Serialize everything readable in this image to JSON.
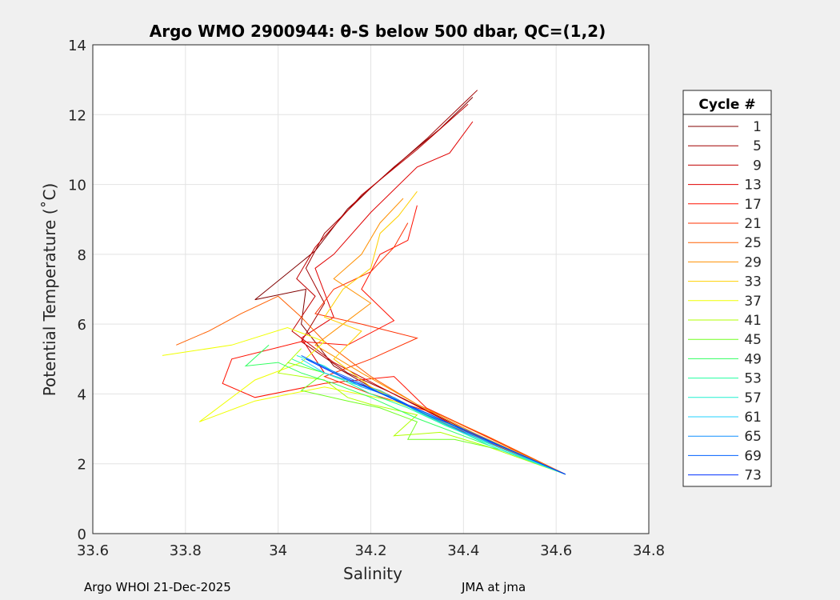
{
  "chart_data": {
    "type": "line",
    "title": "Argo WMO 2900944: θ-S below 500 dbar,  QC=(1,2)",
    "xlabel": "Salinity",
    "ylabel": "Potential Temperature (˚C)",
    "xlim": [
      33.6,
      34.8
    ],
    "ylim": [
      0,
      14
    ],
    "xticks": [
      33.6,
      33.8,
      34,
      34.2,
      34.4,
      34.6,
      34.8
    ],
    "xtick_labels": [
      "33.6",
      "33.8",
      "34",
      "34.2",
      "34.4",
      "34.6",
      "34.8"
    ],
    "yticks": [
      0,
      2,
      4,
      6,
      8,
      10,
      12,
      14
    ],
    "ytick_labels": [
      "0",
      "2",
      "4",
      "6",
      "8",
      "10",
      "12",
      "14"
    ],
    "grid": true,
    "legend": {
      "title": "Cycle #",
      "placement": "right"
    },
    "series": [
      {
        "name": "1",
        "color": "#800000",
        "S": [
          34.42,
          34.35,
          34.25,
          34.15,
          34.08,
          33.95,
          34.06,
          34.05,
          34.12,
          34.2,
          34.35,
          34.62
        ],
        "T": [
          12.5,
          11.6,
          10.5,
          9.3,
          8.1,
          6.7,
          7.0,
          6.0,
          4.8,
          4.2,
          3.2,
          1.7
        ]
      },
      {
        "name": "5",
        "color": "#a00000",
        "S": [
          34.43,
          34.32,
          34.2,
          34.1,
          34.06,
          34.1,
          34.05,
          34.15,
          34.25,
          34.4,
          34.62
        ],
        "T": [
          12.7,
          11.3,
          9.9,
          8.6,
          7.6,
          6.6,
          5.5,
          4.6,
          4.0,
          3.0,
          1.7
        ]
      },
      {
        "name": "9",
        "color": "#c00000",
        "S": [
          34.41,
          34.3,
          34.18,
          34.08,
          34.04,
          34.08,
          34.03,
          34.12,
          34.22,
          34.38,
          34.62
        ],
        "T": [
          12.3,
          11.0,
          9.7,
          8.2,
          7.3,
          6.8,
          5.8,
          4.9,
          4.2,
          3.1,
          1.7
        ]
      },
      {
        "name": "13",
        "color": "#e00000",
        "S": [
          34.42,
          34.37,
          34.3,
          34.2,
          34.12,
          34.08,
          34.12,
          34.05,
          34.1,
          34.22,
          34.35,
          34.62
        ],
        "T": [
          11.8,
          10.9,
          10.5,
          9.2,
          8.0,
          7.6,
          6.2,
          5.6,
          4.6,
          4.1,
          3.2,
          1.7
        ]
      },
      {
        "name": "17",
        "color": "#ff1000",
        "S": [
          34.3,
          34.28,
          34.22,
          34.18,
          34.25,
          34.15,
          34.05,
          33.9,
          33.88,
          33.95,
          34.1,
          34.25,
          34.32,
          34.4,
          34.62
        ],
        "T": [
          9.4,
          8.4,
          8.0,
          7.0,
          6.1,
          5.4,
          5.5,
          5.0,
          4.3,
          3.9,
          4.3,
          4.5,
          3.6,
          3.1,
          1.7
        ]
      },
      {
        "name": "21",
        "color": "#ff3000",
        "S": [
          34.28,
          34.25,
          34.2,
          34.12,
          34.08,
          34.18,
          34.3,
          34.2,
          34.1,
          34.2,
          34.35,
          34.62
        ],
        "T": [
          8.9,
          8.2,
          7.5,
          7.0,
          6.3,
          6.0,
          5.6,
          5.0,
          4.5,
          4.0,
          3.4,
          1.7
        ]
      },
      {
        "name": "25",
        "color": "#ff6000",
        "S": [
          33.78,
          33.85,
          33.92,
          34.0,
          34.05,
          34.1,
          34.15,
          34.2,
          34.3,
          34.45,
          34.62
        ],
        "T": [
          5.4,
          5.8,
          6.3,
          6.8,
          6.2,
          5.5,
          5.0,
          4.5,
          3.7,
          2.8,
          1.7
        ]
      },
      {
        "name": "29",
        "color": "#ff9000",
        "S": [
          34.27,
          34.22,
          34.18,
          34.12,
          34.2,
          34.15,
          34.08,
          34.18,
          34.3,
          34.42,
          34.62
        ],
        "T": [
          9.6,
          8.9,
          8.0,
          7.3,
          6.6,
          6.1,
          5.4,
          4.6,
          3.7,
          2.9,
          1.7
        ]
      },
      {
        "name": "33",
        "color": "#ffd000",
        "S": [
          34.3,
          34.26,
          34.22,
          34.2,
          34.14,
          34.1,
          34.18,
          34.12,
          34.2,
          34.32,
          34.62
        ],
        "T": [
          9.8,
          9.1,
          8.6,
          7.6,
          7.0,
          6.2,
          5.8,
          5.0,
          4.2,
          3.4,
          1.7
        ]
      },
      {
        "name": "37",
        "color": "#f0ff00",
        "S": [
          33.75,
          33.9,
          34.02,
          34.1,
          34.05,
          33.95,
          33.83,
          33.95,
          34.1,
          34.25,
          34.4,
          34.62
        ],
        "T": [
          5.1,
          5.4,
          5.9,
          5.5,
          4.9,
          4.4,
          3.2,
          3.8,
          4.2,
          3.8,
          3.0,
          1.7
        ]
      },
      {
        "name": "41",
        "color": "#b0ff00",
        "S": [
          34.05,
          34.0,
          34.1,
          34.15,
          34.2,
          34.3,
          34.25,
          34.35,
          34.45,
          34.62
        ],
        "T": [
          5.3,
          4.6,
          4.4,
          3.9,
          3.7,
          3.4,
          2.8,
          2.9,
          2.5,
          1.7
        ]
      },
      {
        "name": "45",
        "color": "#70ff20",
        "S": [
          34.02,
          34.1,
          34.05,
          34.15,
          34.22,
          34.3,
          34.28,
          34.38,
          34.48,
          34.62
        ],
        "T": [
          4.9,
          4.6,
          4.1,
          3.8,
          3.6,
          3.2,
          2.7,
          2.7,
          2.4,
          1.7
        ]
      },
      {
        "name": "49",
        "color": "#30ff60",
        "S": [
          33.98,
          33.93,
          34.0,
          34.05,
          34.12,
          34.2,
          34.3,
          34.4,
          34.5,
          34.62
        ],
        "T": [
          5.4,
          4.8,
          4.9,
          4.6,
          4.3,
          3.9,
          3.3,
          2.8,
          2.3,
          1.7
        ]
      },
      {
        "name": "53",
        "color": "#20ffa0",
        "S": [
          34.03,
          34.08,
          34.14,
          34.2,
          34.28,
          34.36,
          34.45,
          34.62
        ],
        "T": [
          5.0,
          4.7,
          4.4,
          4.0,
          3.6,
          3.1,
          2.6,
          1.7
        ]
      },
      {
        "name": "57",
        "color": "#20f0d0",
        "S": [
          34.04,
          34.1,
          34.16,
          34.22,
          34.3,
          34.38,
          34.46,
          34.62
        ],
        "T": [
          5.1,
          4.8,
          4.3,
          4.1,
          3.5,
          3.0,
          2.5,
          1.7
        ]
      },
      {
        "name": "61",
        "color": "#20d0ff",
        "S": [
          34.05,
          34.1,
          34.17,
          34.24,
          34.31,
          34.39,
          34.47,
          34.62
        ],
        "T": [
          5.0,
          4.6,
          4.3,
          3.9,
          3.5,
          3.0,
          2.5,
          1.7
        ]
      },
      {
        "name": "65",
        "color": "#1090ff",
        "S": [
          34.06,
          34.12,
          34.18,
          34.25,
          34.32,
          34.4,
          34.48,
          34.62
        ],
        "T": [
          5.0,
          4.6,
          4.2,
          3.9,
          3.4,
          2.9,
          2.5,
          1.7
        ]
      },
      {
        "name": "69",
        "color": "#0060ff",
        "S": [
          34.05,
          34.11,
          34.18,
          34.24,
          34.32,
          34.4,
          34.5,
          34.62
        ],
        "T": [
          5.1,
          4.7,
          4.3,
          3.9,
          3.4,
          3.0,
          2.4,
          1.7
        ]
      },
      {
        "name": "73",
        "color": "#0030ff",
        "S": [
          34.06,
          34.12,
          34.19,
          34.26,
          34.33,
          34.41,
          34.5,
          34.62
        ],
        "T": [
          5.0,
          4.6,
          4.2,
          3.8,
          3.4,
          2.9,
          2.4,
          1.7
        ]
      }
    ]
  },
  "footer": {
    "left": "Argo WHOI 21-Dec-2025",
    "right": "JMA at jma"
  }
}
